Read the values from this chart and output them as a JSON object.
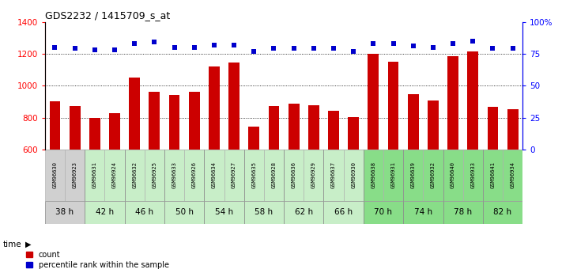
{
  "title": "GDS2232 / 1415709_s_at",
  "samples": [
    "GSM96630",
    "GSM96923",
    "GSM96631",
    "GSM96924",
    "GSM96632",
    "GSM96925",
    "GSM96633",
    "GSM96926",
    "GSM96634",
    "GSM96927",
    "GSM96635",
    "GSM96928",
    "GSM96636",
    "GSM96929",
    "GSM96637",
    "GSM96930",
    "GSM96638",
    "GSM96931",
    "GSM96639",
    "GSM96932",
    "GSM96640",
    "GSM96933",
    "GSM96641",
    "GSM96934"
  ],
  "time_groups": [
    {
      "label": "38 h",
      "indices": [
        0,
        1
      ],
      "color": "#d0d0d0"
    },
    {
      "label": "42 h",
      "indices": [
        2,
        3
      ],
      "color": "#c8eec8"
    },
    {
      "label": "46 h",
      "indices": [
        4,
        5
      ],
      "color": "#c8eec8"
    },
    {
      "label": "50 h",
      "indices": [
        6,
        7
      ],
      "color": "#c8eec8"
    },
    {
      "label": "54 h",
      "indices": [
        8,
        9
      ],
      "color": "#c8eec8"
    },
    {
      "label": "58 h",
      "indices": [
        10,
        11
      ],
      "color": "#c8eec8"
    },
    {
      "label": "62 h",
      "indices": [
        12,
        13
      ],
      "color": "#c8eec8"
    },
    {
      "label": "66 h",
      "indices": [
        14,
        15
      ],
      "color": "#c8eec8"
    },
    {
      "label": "70 h",
      "indices": [
        16,
        17
      ],
      "color": "#88dd88"
    },
    {
      "label": "74 h",
      "indices": [
        18,
        19
      ],
      "color": "#88dd88"
    },
    {
      "label": "78 h",
      "indices": [
        20,
        21
      ],
      "color": "#88dd88"
    },
    {
      "label": "82 h",
      "indices": [
        22,
        23
      ],
      "color": "#88dd88"
    }
  ],
  "bar_values": [
    900,
    875,
    800,
    830,
    1050,
    960,
    940,
    960,
    1120,
    1145,
    745,
    875,
    885,
    880,
    845,
    805,
    1200,
    1150,
    945,
    905,
    1185,
    1215,
    870,
    855
  ],
  "percentile_values": [
    80,
    79,
    78,
    78,
    83,
    84,
    80,
    80,
    82,
    82,
    77,
    79,
    79,
    79,
    79,
    77,
    83,
    83,
    81,
    80,
    83,
    85,
    79,
    79
  ],
  "bar_color": "#cc0000",
  "dot_color": "#0000cc",
  "ylim_left": [
    600,
    1400
  ],
  "ylim_right": [
    0,
    100
  ],
  "yticks_left": [
    600,
    800,
    1000,
    1200,
    1400
  ],
  "yticks_right": [
    0,
    25,
    50,
    75,
    100
  ],
  "ytick_labels_right": [
    "0",
    "25",
    "50",
    "75",
    "100%"
  ],
  "grid_values": [
    800,
    1000,
    1200
  ],
  "bg_color": "#ffffff",
  "legend_count": "count",
  "legend_pct": "percentile rank within the sample"
}
